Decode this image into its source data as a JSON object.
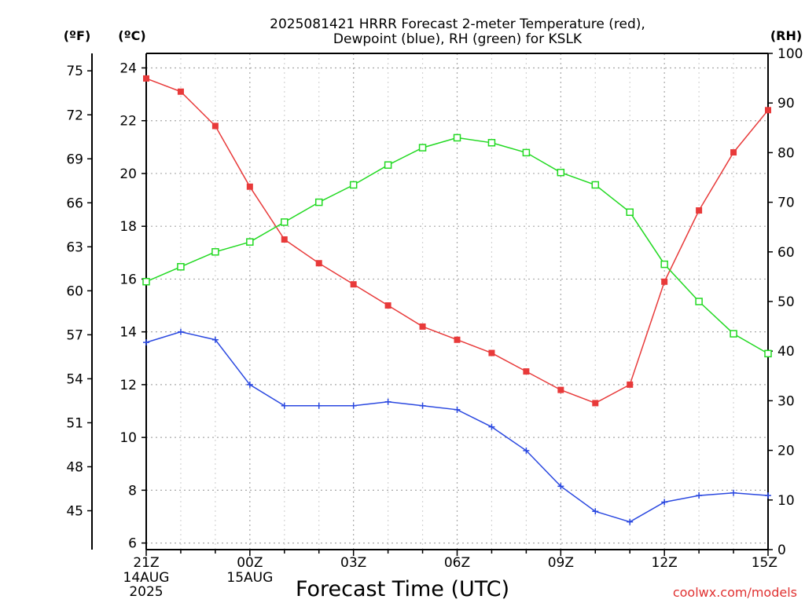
{
  "chart_data": {
    "type": "line",
    "title_line1": "2025081421 HRRR Forecast 2-meter Temperature (red),",
    "title_line2": "Dewpoint (blue), RH (green) for KSLK",
    "xlabel": "Forecast Time (UTC)",
    "credit": "coolwx.com/models",
    "unit_f": "(ºF)",
    "unit_c": "(ºC)",
    "unit_rh": "(RH)",
    "x_hours": [
      21,
      22,
      23,
      24,
      25,
      26,
      27,
      28,
      29,
      30,
      31,
      32,
      33,
      34,
      35,
      36,
      37,
      38,
      39
    ],
    "x_ticks": [
      {
        "hour": 21,
        "line1": "21Z",
        "line2": "14AUG",
        "line3": "2025"
      },
      {
        "hour": 24,
        "line1": "00Z",
        "line2": "15AUG",
        "line3": ""
      },
      {
        "hour": 27,
        "line1": "03Z",
        "line2": "",
        "line3": ""
      },
      {
        "hour": 30,
        "line1": "06Z",
        "line2": "",
        "line3": ""
      },
      {
        "hour": 33,
        "line1": "09Z",
        "line2": "",
        "line3": ""
      },
      {
        "hour": 36,
        "line1": "12Z",
        "line2": "",
        "line3": ""
      },
      {
        "hour": 39,
        "line1": "15Z",
        "line2": "",
        "line3": ""
      }
    ],
    "c_range": [
      5.75,
      24.55
    ],
    "c_ticks": [
      "6",
      "8",
      "10",
      "12",
      "14",
      "16",
      "18",
      "20",
      "22",
      "24"
    ],
    "f_ticks": [
      "45",
      "48",
      "51",
      "54",
      "57",
      "60",
      "63",
      "66",
      "69",
      "72",
      "75"
    ],
    "rh_range": [
      0,
      100
    ],
    "rh_ticks": [
      "0",
      "10",
      "20",
      "30",
      "40",
      "50",
      "60",
      "70",
      "80",
      "90",
      "100"
    ],
    "grid": true,
    "series": [
      {
        "name": "Temperature (red)",
        "color": "#e83a3a",
        "marker": "filled-square",
        "values": [
          23.6,
          23.1,
          21.8,
          19.5,
          17.5,
          16.6,
          15.8,
          15.0,
          14.2,
          13.7,
          13.2,
          12.5,
          11.8,
          11.3,
          12.0,
          15.9,
          18.6,
          20.8,
          22.4
        ]
      },
      {
        "name": "Dewpoint (blue)",
        "color": "#2a48e0",
        "marker": "plus",
        "values": [
          13.6,
          14.0,
          13.7,
          12.0,
          11.2,
          11.2,
          11.2,
          11.35,
          11.2,
          11.05,
          10.4,
          9.5,
          8.15,
          7.2,
          6.8,
          7.55,
          7.8,
          7.9,
          7.8
        ]
      },
      {
        "name": "RH (green)",
        "color": "#22d922",
        "marker": "open-square",
        "values": [
          54,
          57,
          60,
          62,
          66,
          70,
          73.5,
          77.5,
          81,
          83,
          82,
          80,
          76,
          73.5,
          68,
          57.5,
          50,
          43.5,
          39.5
        ]
      }
    ]
  }
}
